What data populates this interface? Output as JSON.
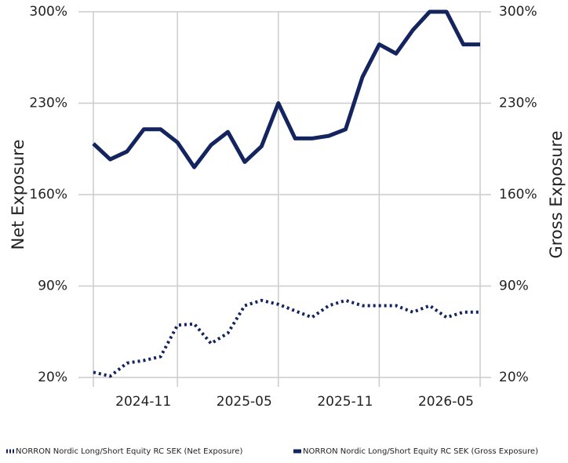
{
  "chart_data": {
    "type": "line",
    "y_label": "Net Exposure",
    "y2_label": "Gross Exposure",
    "categories": [
      null,
      null,
      null,
      null,
      null,
      "2024-11",
      null,
      null,
      null,
      null,
      null,
      "2025-05",
      null,
      null,
      null,
      null,
      null,
      "2025-11",
      null,
      null,
      null,
      null,
      null,
      "2026-05"
    ],
    "series": [
      {
        "name": "NORRON Nordic Long/Short Equity RC SEK (Net Exposure)",
        "color": "#13245f",
        "style": "dotted",
        "axis": "y",
        "values": [
          24,
          21,
          31,
          33,
          36,
          60,
          61,
          46,
          54,
          75,
          79,
          76,
          71,
          66,
          75,
          79,
          75,
          75,
          75,
          70,
          75,
          66,
          70,
          70
        ]
      },
      {
        "name": "NORRON Nordic Long/Short Equity RC SEK (Gross Exposure)",
        "color": "#13245f",
        "style": "solid",
        "axis": "y2",
        "values": [
          199,
          187,
          193,
          210,
          210,
          200,
          181,
          198,
          208,
          185,
          197,
          230,
          203,
          203,
          205,
          210,
          250,
          275,
          268,
          286,
          300,
          300,
          275,
          275
        ]
      }
    ],
    "ylim": [
      20,
      300
    ],
    "yticks": [
      {
        "value": 20,
        "label": "20%"
      },
      {
        "value": 90,
        "label": "90%"
      },
      {
        "value": 160,
        "label": "160%"
      },
      {
        "value": 230,
        "label": "230%"
      },
      {
        "value": 300,
        "label": "300%"
      }
    ],
    "y2lim": [
      20,
      300
    ],
    "y2ticks": [
      {
        "value": 20,
        "label": "20%"
      },
      {
        "value": 90,
        "label": "90%"
      },
      {
        "value": 160,
        "label": "160%"
      },
      {
        "value": 230,
        "label": "230%"
      },
      {
        "value": 300,
        "label": "300%"
      }
    ],
    "grid": true,
    "legend": "bottom"
  }
}
